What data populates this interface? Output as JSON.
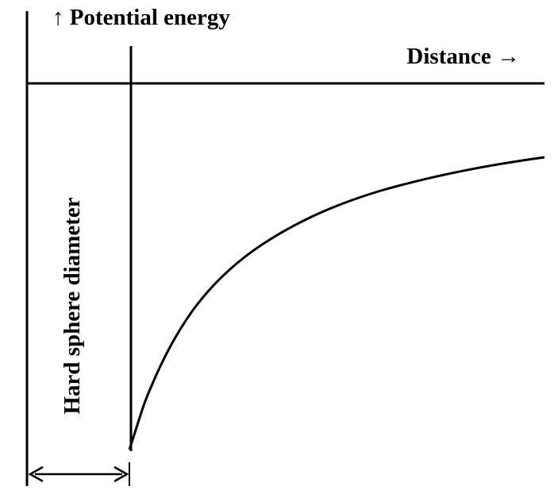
{
  "diagram": {
    "y_axis_label": "↑ Potential energy",
    "x_axis_label": "Distance →",
    "hard_sphere_label": "Hard sphere diameter"
  },
  "colors": {
    "line": "#000000",
    "background": "#ffffff"
  }
}
